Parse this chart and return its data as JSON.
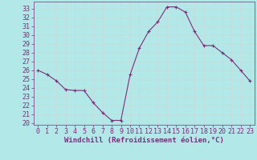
{
  "x": [
    0,
    1,
    2,
    3,
    4,
    5,
    6,
    7,
    8,
    9,
    10,
    11,
    12,
    13,
    14,
    15,
    16,
    17,
    18,
    19,
    20,
    21,
    22,
    23
  ],
  "y": [
    26,
    25.5,
    24.8,
    23.8,
    23.7,
    23.7,
    22.3,
    21.2,
    20.3,
    20.3,
    25.5,
    28.5,
    30.4,
    31.5,
    33.2,
    33.2,
    32.6,
    30.4,
    28.8,
    28.8,
    28.0,
    27.2,
    26.0,
    24.8
  ],
  "line_color": "#7b2f7b",
  "marker": "+",
  "bg_color": "#b2e8e8",
  "grid_color": "#c8dada",
  "xlabel": "Windchill (Refroidissement éolien,°C)",
  "xlabel_color": "#7b2f7b",
  "ylim": [
    19.8,
    33.8
  ],
  "xlim": [
    -0.5,
    23.5
  ],
  "tick_color": "#7b2f7b",
  "label_fontsize": 6.5,
  "tick_fontsize": 6.0
}
